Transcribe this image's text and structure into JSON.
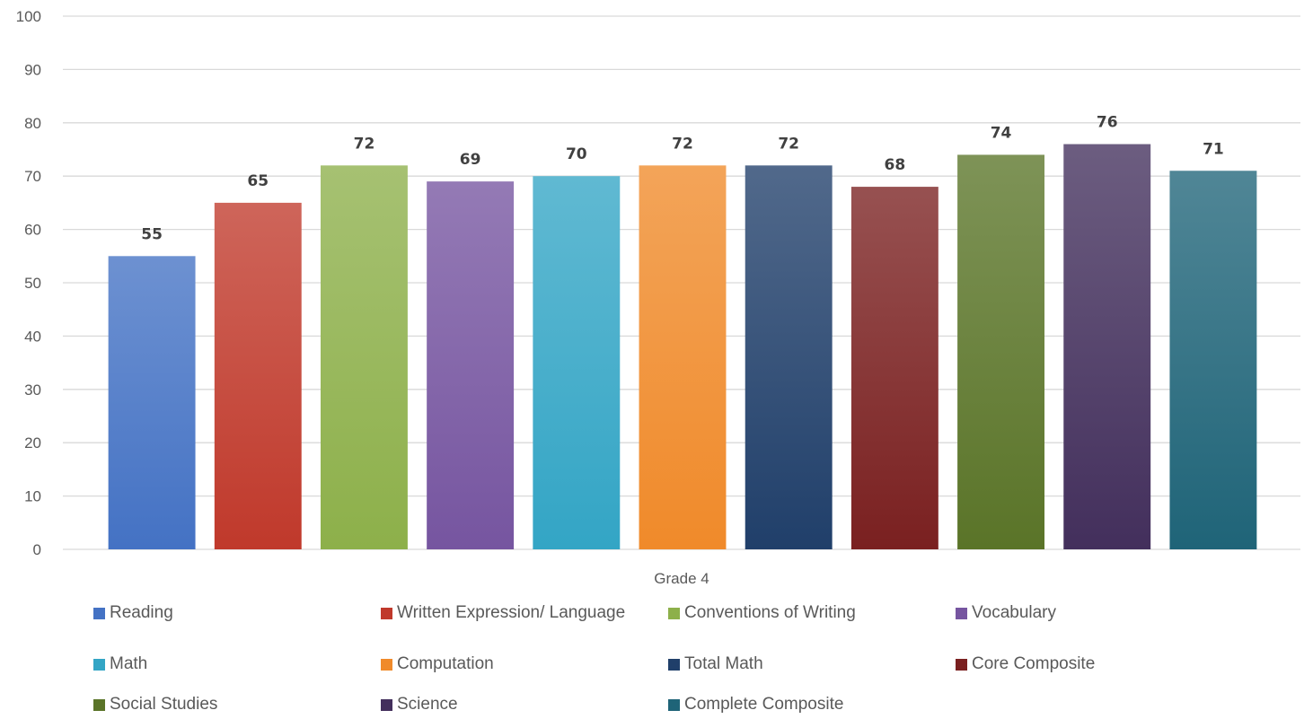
{
  "chart_data": {
    "type": "bar",
    "categories": [
      "Grade 4"
    ],
    "series": [
      {
        "name": "Reading",
        "values": [
          55
        ],
        "color": "#4472C4"
      },
      {
        "name": "Written Expression/ Language",
        "values": [
          65
        ],
        "color": "#C0392B"
      },
      {
        "name": "Conventions of Writing",
        "values": [
          72
        ],
        "color": "#8DB04A"
      },
      {
        "name": "Vocabulary",
        "values": [
          69
        ],
        "color": "#7655A0"
      },
      {
        "name": "Math",
        "values": [
          70
        ],
        "color": "#33A5C5"
      },
      {
        "name": "Computation",
        "values": [
          72
        ],
        "color": "#F08A2A"
      },
      {
        "name": "Total Math",
        "values": [
          72
        ],
        "color": "#203F6A"
      },
      {
        "name": "Core Composite",
        "values": [
          68
        ],
        "color": "#7A2020"
      },
      {
        "name": "Social Studies",
        "values": [
          74
        ],
        "color": "#5A7428"
      },
      {
        "name": "Science",
        "values": [
          76
        ],
        "color": "#432F5C"
      },
      {
        "name": "Complete Composite",
        "values": [
          71
        ],
        "color": "#1F6478"
      }
    ],
    "ylim": [
      0,
      100
    ],
    "yticks": [
      0,
      10,
      20,
      30,
      40,
      50,
      60,
      70,
      80,
      90,
      100
    ],
    "grid": true,
    "legend_position": "bottom",
    "data_labels": true
  }
}
